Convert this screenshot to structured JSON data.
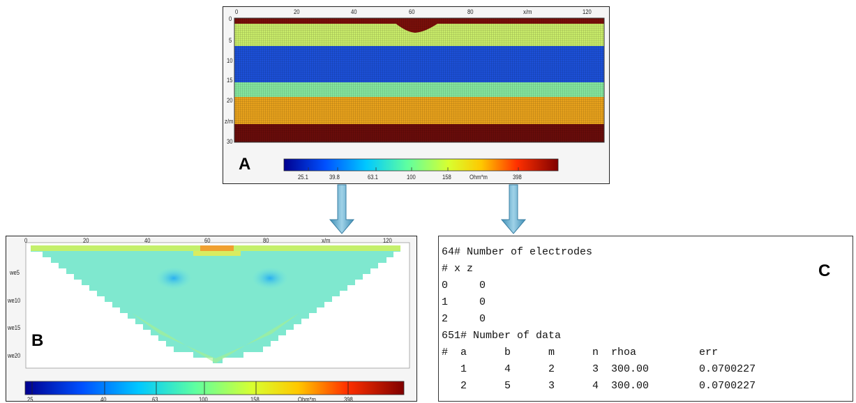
{
  "panel_a": {
    "label": "A",
    "x_ticks": [
      "0",
      "20",
      "40",
      "60",
      "80",
      "x/m",
      "120"
    ],
    "z_ticks": [
      "0",
      "5",
      "10",
      "15",
      "20",
      "z/m",
      "30"
    ],
    "colorbar_ticks": [
      "25.1",
      "39.8",
      "63.1",
      "100",
      "158",
      "Ohm*m",
      "398"
    ]
  },
  "panel_b": {
    "label": "B",
    "x_ticks": [
      "0",
      "20",
      "40",
      "60",
      "80",
      "x/m",
      "120"
    ],
    "y_ticks": [
      "we5",
      "we10",
      "we15",
      "we20"
    ],
    "colorbar_ticks": [
      "25",
      "40",
      "63",
      "100",
      "158",
      "Ohm*m",
      "398"
    ]
  },
  "panel_c": {
    "label": "C",
    "lines": [
      "64# Number of electrodes",
      "# x z",
      "0     0",
      "1     0",
      "2     0",
      "651# Number of data",
      "#  a      b      m      n  rhoa          err",
      "   1      4      2      3  300.00        0.0700227",
      "   2      5      3      4  300.00        0.0700227"
    ]
  },
  "colors": {
    "deep_red": "#7a0f0a",
    "yellow_green": "#c9ec6a",
    "blue": "#1c50d8",
    "orange": "#e8a21c",
    "cyan_green": "#86e8b8",
    "arrow": "#5aa7c9"
  }
}
